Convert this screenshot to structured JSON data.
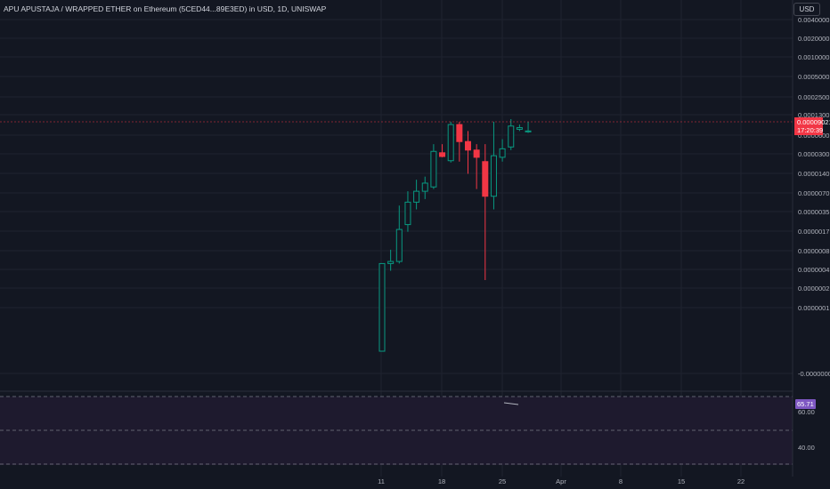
{
  "header": {
    "title": "APU APUSTAJA / WRAPPED ETHER on Ethereum (5CED44...89E3ED) in USD, 1D, UNISWAP",
    "currency_button": "USD"
  },
  "price_axis": {
    "labels": [
      "0.0040000",
      "0.0020000",
      "0.0010000",
      "0.0005000",
      "0.0002500",
      "0.0001300",
      "0.0000600",
      "0.0000300",
      "0.0000140",
      "0.0000070",
      "0.0000035",
      "0.0000017",
      "0.0000008",
      "0.0000004",
      "0.0000002",
      "0.0000001",
      "-0.0000000"
    ]
  },
  "current_price": {
    "value": "0.00009021",
    "countdown": "17:20:39",
    "color": "#f23645"
  },
  "time_axis": {
    "labels": [
      "11",
      "18",
      "25",
      "Apr",
      "8",
      "15",
      "22"
    ]
  },
  "rsi": {
    "value": "65.71",
    "labels": [
      "60.00",
      "40.00"
    ],
    "color": "#7e57c2"
  },
  "colors": {
    "up": "#089981",
    "down": "#f23645",
    "background": "#131722"
  },
  "chart_data": {
    "type": "candlestick",
    "scale": "log",
    "candles": [
      {
        "o": 1e-07,
        "h": 1.3e-06,
        "l": 1e-07,
        "c": 1.5e-06
      },
      {
        "o": 1.5e-06,
        "h": 2.3e-06,
        "l": 1.2e-06,
        "c": 1.6e-06
      },
      {
        "o": 1.6e-06,
        "h": 9e-06,
        "l": 1.5e-06,
        "c": 4.3e-06
      },
      {
        "o": 5e-06,
        "h": 1.4e-05,
        "l": 4e-06,
        "c": 1e-05
      },
      {
        "o": 1e-05,
        "h": 2e-05,
        "l": 8e-06,
        "c": 1.4e-05
      },
      {
        "o": 1.4e-05,
        "h": 2.2e-05,
        "l": 1.1e-05,
        "c": 1.8e-05
      },
      {
        "o": 1.6e-05,
        "h": 6e-05,
        "l": 1.5e-05,
        "c": 4.8e-05
      },
      {
        "o": 4.6e-05,
        "h": 6e-05,
        "l": 4e-05,
        "c": 4.1e-05
      },
      {
        "o": 3.6e-05,
        "h": 0.00012,
        "l": 3.4e-05,
        "c": 0.00011
      },
      {
        "o": 0.00011,
        "h": 0.00012,
        "l": 3.5e-05,
        "c": 6.5e-05
      },
      {
        "o": 6.5e-05,
        "h": 9e-05,
        "l": 2.4e-05,
        "c": 5e-05
      },
      {
        "o": 5e-05,
        "h": 6e-05,
        "l": 1.5e-05,
        "c": 4e-05
      },
      {
        "o": 3.5e-05,
        "h": 6e-05,
        "l": 9e-07,
        "c": 1.2e-05
      },
      {
        "o": 1.2e-05,
        "h": 0.00012,
        "l": 8e-06,
        "c": 4.2e-05
      },
      {
        "o": 4e-05,
        "h": 7e-05,
        "l": 3.5e-05,
        "c": 5.2e-05
      },
      {
        "o": 5.5e-05,
        "h": 0.00013,
        "l": 5e-05,
        "c": 0.000105
      },
      {
        "o": 9.5e-05,
        "h": 0.00011,
        "l": 9e-05,
        "c": 0.0001
      },
      {
        "o": 9e-05,
        "h": 0.00012,
        "l": 8.5e-05,
        "c": 9.021e-05
      }
    ]
  }
}
